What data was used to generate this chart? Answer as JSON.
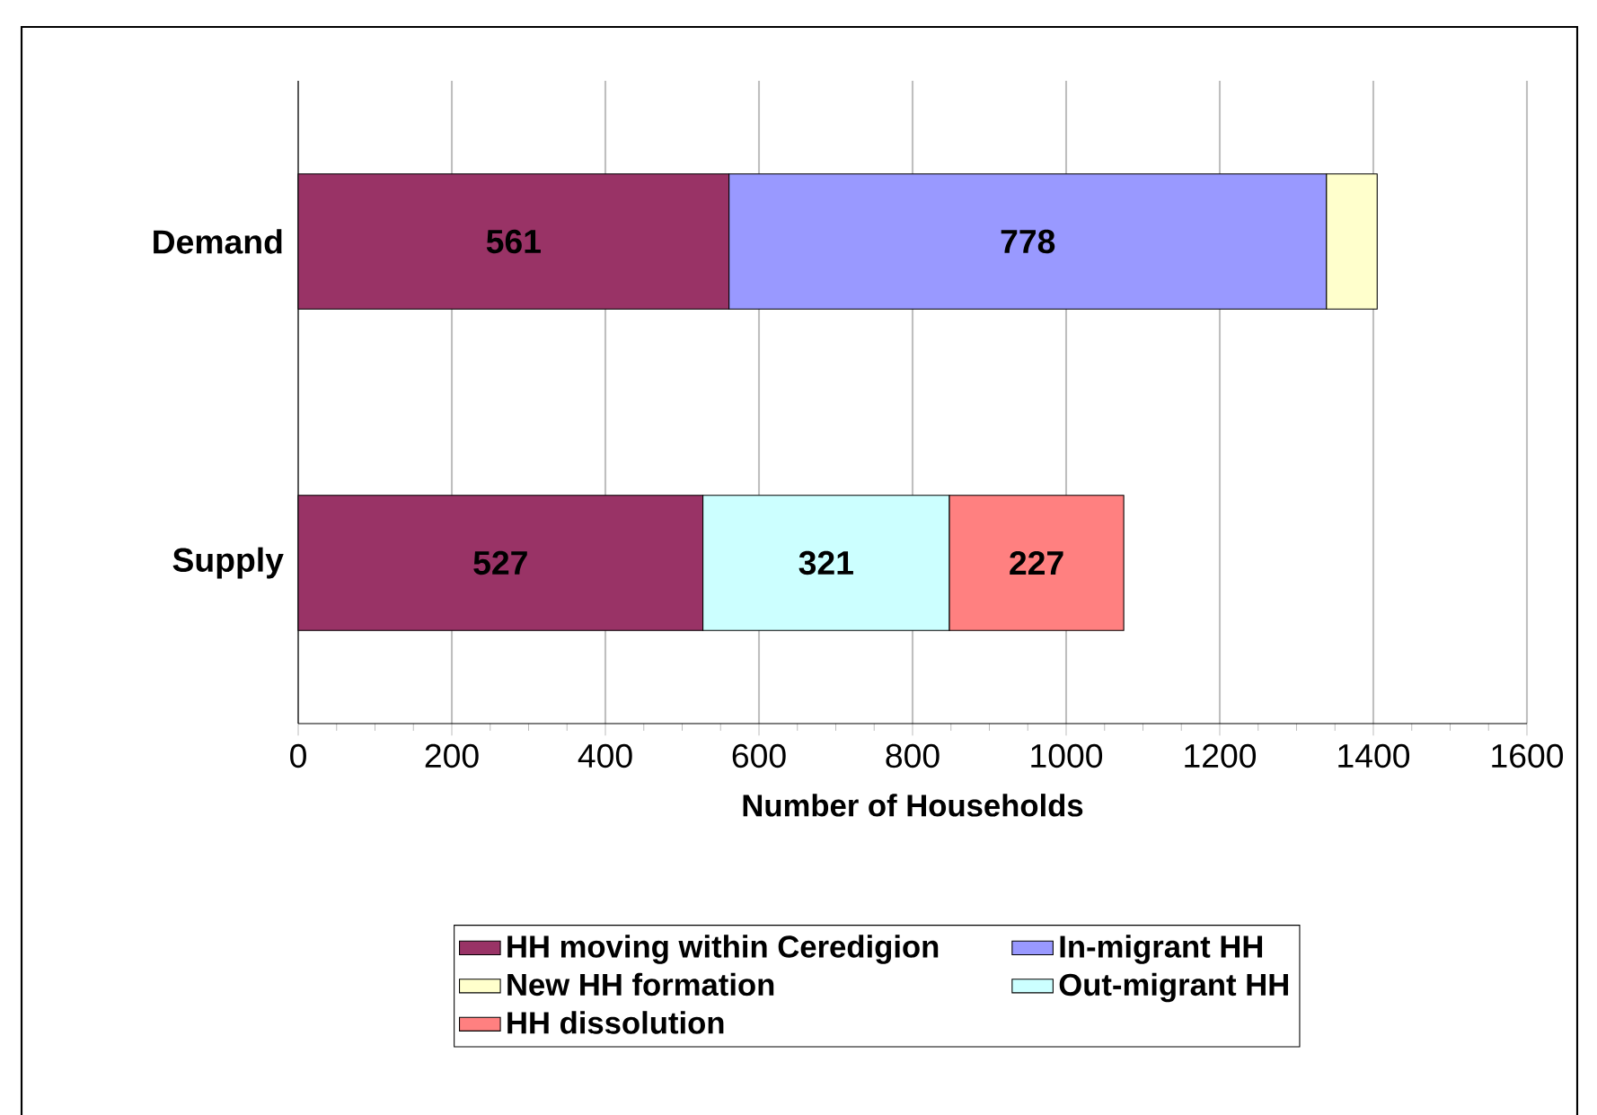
{
  "chart_data": {
    "type": "bar",
    "orientation": "horizontal",
    "stacked": true,
    "categories": [
      "Demand",
      "Supply"
    ],
    "series": [
      {
        "name": "HH moving within Ceredigion",
        "color": "#993366",
        "values": [
          561,
          527
        ],
        "value_labels": [
          "561",
          "527"
        ]
      },
      {
        "name": "In-migrant HH",
        "color": "#9999ff",
        "values": [
          778,
          null
        ],
        "value_labels": [
          "778",
          null
        ]
      },
      {
        "name": "New HH formation",
        "color": "#ffffcc",
        "values": [
          66,
          null
        ]
      },
      {
        "name": "Out-migrant HH",
        "color": "#ccffff",
        "values": [
          null,
          321
        ],
        "value_labels": [
          null,
          "321"
        ]
      },
      {
        "name": "HH dissolution",
        "color": "#ff8080",
        "values": [
          null,
          227
        ],
        "value_labels": [
          null,
          "227"
        ]
      }
    ],
    "xlabel": "Number of Households",
    "xlim": [
      0,
      1600
    ],
    "xticks": [
      0,
      200,
      400,
      600,
      800,
      1000,
      1200,
      1400,
      1600
    ],
    "grid": "x",
    "legend": "bottom"
  }
}
